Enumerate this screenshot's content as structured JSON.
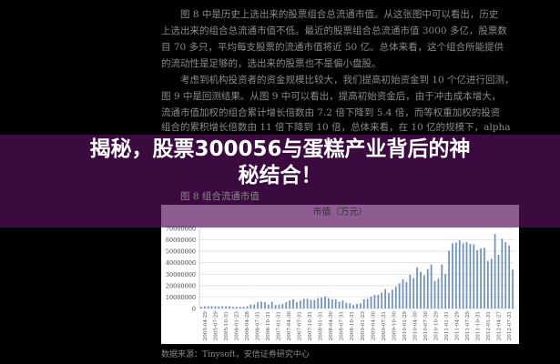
{
  "paragraphs": [
    "　　图 8 中是历史上选出来的股票组合总流通市值。从这张图中可以看出，历史",
    "上选出来的组合总流通市值不低。最近的股票组合总流通市值 3000 多亿，股票数",
    "目 70 多只，平均每支股票的流通市值将近 50 亿。总体来看，这个组合所能提供",
    "的流动性是足够的，选出来的股票也不是偏小盘股。",
    "　　考虑到机构投资者的资金规模比较大，我们提高初始资金到 10 个亿进行回测，",
    "图 9 中是回测结果。从图 9 中可以看出，提高初始资金后，由于冲击成本增大，",
    "流通市值加权的组合累计增长倍数由 7.2 倍下降到 5.4 倍，而等权重加权的投资",
    "组合的累积增长倍数由 11 倍下降到 10 倍，总体来看，在 10 亿的规模下，alpha",
    "　　图 8 组合流通市值"
  ],
  "headline": {
    "line1": "揭秘，股票300056与蛋糕产业背后的神",
    "line2": "秘结合！"
  },
  "source": "数据来源：Tinysoft，安信证券研究中心",
  "colors": {
    "bar": "#6f93bd",
    "overlay": "#570f5d",
    "grid": "#d9d9d9"
  },
  "chart_data": {
    "type": "bar",
    "title": "市值（万元）",
    "ylim": [
      0,
      70000000
    ],
    "yticks": [
      "0",
      "10000000",
      "20000000",
      "30000000",
      "40000000",
      "50000000",
      "60000000",
      "70000000"
    ],
    "grid": true,
    "xtick_labels": [
      "2005-04-29",
      "2005-07-29",
      "2005-10-31",
      "2006-01-23",
      "2006-04-28",
      "2006-07-31",
      "2006-10-31",
      "2007-01-31",
      "2007-04-30",
      "2007-07-31",
      "2007-10-31",
      "2008-01-31",
      "2008-04-30",
      "2008-07-31",
      "2008-10-31",
      "2009-01-23",
      "2009-04-30",
      "2009-07-31",
      "2009-10-30",
      "2010-01-29",
      "2010-04-30",
      "2010-07-30",
      "2010-10-29",
      "2011-01-31",
      "2011-04-29",
      "2011-07-29",
      "2011-10-31",
      "2012-01-31",
      "2012-04-27",
      "2012-07-31"
    ],
    "values": [
      1500000,
      2000000,
      2000000,
      2000000,
      2000000,
      2000000,
      2000000,
      2000000,
      2000000,
      1500000,
      1500000,
      1500000,
      1500000,
      2000000,
      3500000,
      3500000,
      5500000,
      6000000,
      5500000,
      3500000,
      6000000,
      3000000,
      3500000,
      4000000,
      5500000,
      7000000,
      8000000,
      5500000,
      7000000,
      8500000,
      8500000,
      7500000,
      7500000,
      9000000,
      9500000,
      10500000,
      9000000,
      8000000,
      8000000,
      6000000,
      7000000,
      5000000,
      4500000,
      3000000,
      4000000,
      4500000,
      8000000,
      8500000,
      10500000,
      12000000,
      12000000,
      14000000,
      17000000,
      13500000,
      16500000,
      19000000,
      22000000,
      25500000,
      23000000,
      29500000,
      26500000,
      36000000,
      32000000,
      29000000,
      34500000,
      38500000,
      24000000,
      26000000,
      38500000,
      30000000,
      50500000,
      57000000,
      57500000,
      59500000,
      57000000,
      58000000,
      56500000,
      56000000,
      51000000,
      52500000,
      53000000,
      41500000,
      43500000,
      65000000,
      47000000,
      61000000,
      58000000,
      55000000,
      34000000
    ]
  }
}
